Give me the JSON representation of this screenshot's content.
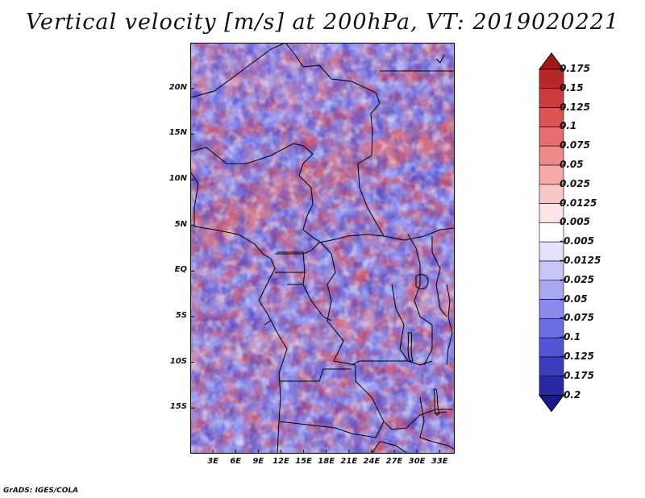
{
  "title": "Vertical velocity [m/s] at 200hPa, VT: 2019020221",
  "credit": "GrADS: IGES/COLA",
  "map": {
    "lat_labels": [
      "20N",
      "15N",
      "10N",
      "5N",
      "EQ",
      "5S",
      "10S",
      "15S"
    ],
    "lon_labels": [
      "3E",
      "6E",
      "9E",
      "12E",
      "15E",
      "18E",
      "21E",
      "24E",
      "27E",
      "30E",
      "33E"
    ]
  },
  "colorbar": {
    "labels": [
      "0.175",
      "0.15",
      "0.125",
      "0.1",
      "0.075",
      "0.05",
      "0.025",
      "0.0125",
      "0.005",
      "-0.005",
      "-0.0125",
      "-0.025",
      "-0.05",
      "-0.075",
      "-0.1",
      "-0.125",
      "-0.175",
      "-0.2"
    ],
    "colors": [
      "#a01818",
      "#b82828",
      "#cc3c3c",
      "#dc5454",
      "#e46e6e",
      "#ee8a8a",
      "#f4a8a8",
      "#f8c6c6",
      "#fce4e4",
      "#ffffff",
      "#e2e2fc",
      "#c6c6f8",
      "#a8a8f2",
      "#8a8aec",
      "#6e6ee4",
      "#5454d6",
      "#3c3cbe",
      "#2828a6",
      "#181890"
    ]
  },
  "chart_data": {
    "type": "heatmap",
    "title": "Vertical velocity [m/s] at 200hPa, VT: 2019020221",
    "variable": "Vertical velocity",
    "units": "m/s",
    "level": "200hPa",
    "valid_time": "2019020221",
    "lon_range": [
      0,
      35
    ],
    "lat_range": [
      -20,
      25
    ],
    "contour_levels": [
      -0.2,
      -0.175,
      -0.125,
      -0.1,
      -0.075,
      -0.05,
      -0.025,
      -0.0125,
      -0.005,
      0.005,
      0.0125,
      0.025,
      0.05,
      0.075,
      0.1,
      0.125,
      0.15,
      0.175
    ]
  }
}
